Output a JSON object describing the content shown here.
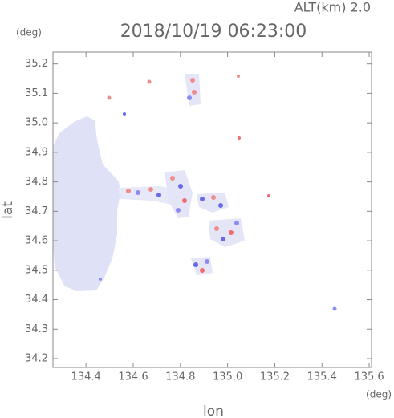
{
  "chart_data": {
    "type": "map",
    "title": "2018/10/19 06:23:00",
    "annotation": "ALT(km) 2.0",
    "y_unit": "(deg)",
    "x_unit": "(deg)",
    "x_label": "lon",
    "y_label": "lat",
    "xlim": [
      134.26,
      135.61
    ],
    "ylim": [
      34.17,
      35.24
    ],
    "xticks": [
      134.4,
      134.6,
      134.8,
      {
        "value": 135,
        "label": "135.0"
      },
      135.2,
      135.4,
      135.6
    ],
    "yticks": [
      34.2,
      34.3,
      34.4,
      34.5,
      34.6,
      34.7,
      34.8,
      34.9,
      {
        "value": 35,
        "label": "35.0"
      },
      35.1,
      35.2
    ]
  }
}
